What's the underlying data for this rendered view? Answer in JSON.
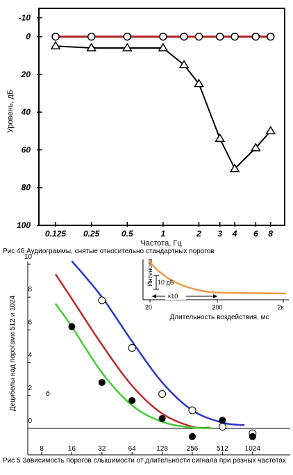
{
  "chart_data": [
    {
      "type": "line",
      "xlabel": "Частота, Гц",
      "ylabel": "Уровень, дБ",
      "y_inverted": true,
      "ylim": [
        -15,
        100
      ],
      "xscale": "log",
      "x_tick_values": [
        0.125,
        0.25,
        0.5,
        1,
        2,
        3,
        4,
        6,
        8
      ],
      "x_tick_labels": [
        "0.125",
        "0.25",
        "0.5",
        "1",
        "2",
        "3",
        "4",
        "6",
        "8"
      ],
      "y_tick_values": [
        -10,
        0,
        20,
        40,
        60,
        80,
        100
      ],
      "y_tick_labels": [
        "-10",
        "0",
        "20",
        "40",
        "60",
        "80",
        "100"
      ],
      "grid": false,
      "series": [
        {
          "marker": "circle",
          "color": "#b02020",
          "x": [
            0.125,
            0.25,
            0.5,
            1,
            1.5,
            2,
            3,
            4,
            6,
            8
          ],
          "y": [
            0,
            0,
            0,
            0,
            0,
            0,
            0,
            0,
            0,
            0
          ]
        },
        {
          "marker": "triangle",
          "color": "#000000",
          "x": [
            0.125,
            0.25,
            0.5,
            1,
            1.5,
            2,
            3,
            4,
            6,
            8
          ],
          "y": [
            5,
            6,
            6,
            6,
            15,
            25,
            54,
            70,
            59,
            50
          ]
        }
      ],
      "caption": "Рис 4б Аудиограммы, снятые относительно стандартных порогов"
    },
    {
      "type": "scatter",
      "xlabel": "",
      "ylabel": "Децибелы над порогами 512 и 1024",
      "xscale": "log",
      "ylim": [
        -1,
        10
      ],
      "x_tick_values": [
        8,
        16,
        32,
        64,
        128,
        256,
        512,
        1024
      ],
      "x_tick_labels": [
        "8",
        "16",
        "32",
        "64",
        "128",
        "256",
        "512",
        "1024"
      ],
      "y_tick_values": [
        0,
        2,
        4,
        6,
        8,
        10
      ],
      "y_tick_labels": [
        "0",
        "2",
        "4",
        "6",
        "8",
        "10"
      ],
      "side_label": "б",
      "open_points": {
        "x": [
          32,
          64,
          128,
          256,
          512,
          1024
        ],
        "y": [
          7.8,
          4.9,
          2.1,
          1.1,
          0.1,
          -0.3
        ]
      },
      "filled_points": {
        "x": [
          16,
          32,
          64,
          128,
          256,
          512,
          1024
        ],
        "y": [
          6.2,
          2.8,
          1.7,
          0.6,
          -0.5,
          0.5,
          -0.5
        ]
      },
      "curves": [
        {
          "color": "#2a36c8",
          "x": [
            16,
            32,
            64,
            128,
            256,
            512,
            850
          ],
          "y": [
            10.2,
            8.0,
            5.3,
            2.8,
            1.1,
            0.35,
            0.2
          ]
        },
        {
          "color": "#c02828",
          "x": [
            11,
            16,
            32,
            64,
            128,
            256,
            380
          ],
          "y": [
            9.4,
            7.9,
            5.1,
            2.6,
            0.9,
            0.1,
            0.05
          ]
        },
        {
          "color": "#44cc33",
          "x": [
            11,
            16,
            32,
            64,
            128,
            256,
            400
          ],
          "y": [
            7.6,
            6.2,
            3.4,
            1.4,
            0.4,
            0.05,
            0.02
          ]
        }
      ],
      "inset": {
        "xlabel": "Длительность воздействия, мс",
        "ylabel": "Интенсив",
        "x_tick_labels": [
          "20",
          "200",
          "2к"
        ],
        "scale_y_label": "10 дБ",
        "scale_x_label": "×10",
        "curve_color": "#ee9944"
      },
      "caption": "Рис 5 Зависимость порогов слышимости от длительности сигнала при разных частотах"
    }
  ]
}
